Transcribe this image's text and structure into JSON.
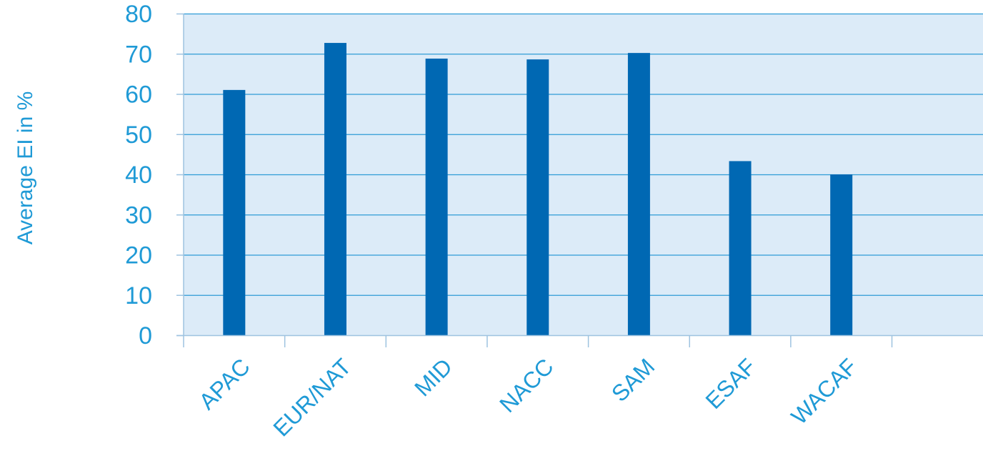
{
  "chart_data": {
    "type": "bar",
    "categories": [
      "APAC",
      "EUR/NAT",
      "MID",
      "NACC",
      "SAM",
      "ESAF",
      "WACAF"
    ],
    "values": [
      61,
      72.7,
      68.8,
      68.6,
      70.2,
      43.3,
      40
    ],
    "title": "",
    "xlabel": "",
    "ylabel": "Average EI in %",
    "ylim": [
      0,
      80
    ],
    "yticks": [
      0,
      10,
      20,
      30,
      40,
      50,
      60,
      70,
      80
    ],
    "grid": true,
    "legend": "none",
    "colors": {
      "bar": "#0068B3",
      "plot_background": "#DCEBF8",
      "gridline": "#2E9BD6",
      "text": "#1F9AD6",
      "axis": "#9EC3E0"
    }
  }
}
